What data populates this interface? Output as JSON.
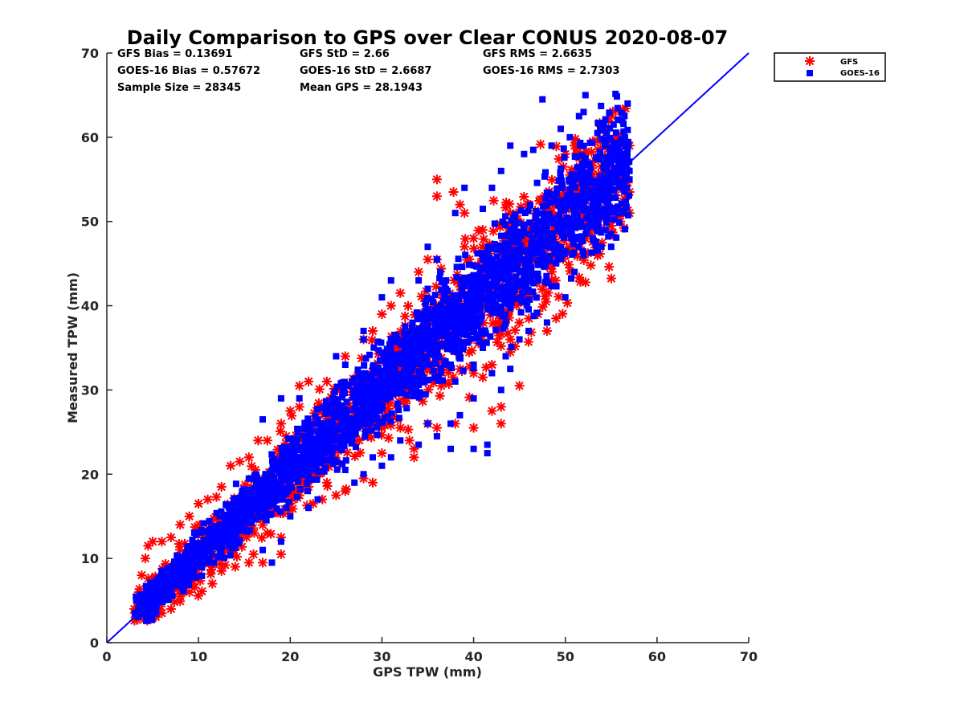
{
  "chart_data": {
    "type": "scatter",
    "title": "Daily Comparison to GPS over Clear CONUS 2020-08-07",
    "xlabel": "GPS TPW (mm)",
    "ylabel": "Measured TPW (mm)",
    "xlim": [
      0,
      70
    ],
    "ylim": [
      0,
      70
    ],
    "xticks": [
      "0",
      "10",
      "20",
      "30",
      "40",
      "50",
      "60",
      "70"
    ],
    "yticks": [
      "0",
      "10",
      "20",
      "30",
      "40",
      "50",
      "60",
      "70"
    ],
    "grid": false,
    "legend_position": "outside-top-right",
    "stats": [
      [
        "GFS Bias = 0.13691",
        "GFS StD = 2.66",
        "GFS RMS = 2.6635"
      ],
      [
        "GOES-16 Bias = 0.57672",
        "GOES-16 StD = 2.6687",
        "GOES-16 RMS = 2.7303"
      ],
      [
        "Sample Size = 28345",
        "Mean GPS = 28.1943",
        ""
      ]
    ],
    "series": [
      {
        "name": "GFS",
        "marker": "asterisk",
        "color": "#ff0000",
        "outliers": [
          [
            33.5,
            22
          ],
          [
            33.5,
            23
          ],
          [
            36,
            55
          ],
          [
            36,
            53
          ],
          [
            37.8,
            53.5
          ],
          [
            38.5,
            52
          ],
          [
            39,
            51
          ],
          [
            36,
            45.5
          ],
          [
            35,
            45.5
          ],
          [
            34,
            44
          ],
          [
            32,
            41.5
          ],
          [
            31,
            40
          ],
          [
            30,
            39
          ],
          [
            29,
            37
          ],
          [
            28,
            36
          ],
          [
            26,
            34
          ],
          [
            24,
            31
          ],
          [
            22,
            31
          ],
          [
            21,
            30.5
          ],
          [
            45,
            30.5
          ],
          [
            43,
            26
          ],
          [
            43,
            28
          ],
          [
            42,
            27.5
          ],
          [
            40,
            25.5
          ],
          [
            38,
            26
          ],
          [
            36,
            25.5
          ],
          [
            35,
            26
          ],
          [
            32,
            25.5
          ],
          [
            30,
            25.5
          ],
          [
            48,
            37
          ],
          [
            49,
            38.5
          ],
          [
            47,
            39
          ],
          [
            46,
            41
          ],
          [
            47.5,
            45
          ],
          [
            48,
            48
          ],
          [
            50,
            46
          ],
          [
            51,
            47
          ],
          [
            54,
            47.5
          ],
          [
            55,
            49.5
          ],
          [
            56,
            50
          ],
          [
            57,
            53.5
          ],
          [
            57,
            51
          ],
          [
            56,
            54
          ],
          [
            57,
            59
          ],
          [
            52,
            58
          ],
          [
            51,
            59
          ],
          [
            53,
            57
          ],
          [
            44,
            36
          ],
          [
            45,
            38
          ],
          [
            42,
            33
          ],
          [
            41,
            31.5
          ],
          [
            40,
            32
          ],
          [
            44,
            34.5
          ],
          [
            33,
            24
          ],
          [
            27,
            27
          ],
          [
            24,
            19
          ],
          [
            22,
            18.5
          ],
          [
            21,
            17.5
          ],
          [
            20,
            16.5
          ],
          [
            18.5,
            15.5
          ],
          [
            17.5,
            13
          ],
          [
            16,
            10.5
          ],
          [
            15.5,
            9.5
          ],
          [
            14,
            9
          ],
          [
            12.5,
            8.5
          ],
          [
            11.5,
            7
          ],
          [
            9,
            6
          ],
          [
            8,
            5.5
          ],
          [
            7,
            4
          ],
          [
            6,
            3.5
          ],
          [
            5,
            3
          ],
          [
            4,
            3
          ],
          [
            3.5,
            3.5
          ],
          [
            3,
            4
          ],
          [
            3.5,
            6
          ],
          [
            3.8,
            8
          ],
          [
            4.2,
            10
          ],
          [
            4.5,
            11.5
          ],
          [
            5,
            12
          ],
          [
            6,
            12
          ],
          [
            7,
            12.5
          ],
          [
            8,
            14
          ],
          [
            9,
            15
          ],
          [
            10,
            16.5
          ],
          [
            11,
            17
          ],
          [
            12.5,
            18.5
          ],
          [
            13.5,
            21
          ],
          [
            14.5,
            21.5
          ],
          [
            15.5,
            22
          ],
          [
            16.5,
            24
          ],
          [
            17.5,
            24
          ],
          [
            19,
            26
          ],
          [
            20,
            27.5
          ],
          [
            21,
            28
          ],
          [
            30,
            22.5
          ],
          [
            29,
            19
          ],
          [
            28,
            19.5
          ],
          [
            26,
            18
          ],
          [
            25,
            17.5
          ],
          [
            23.5,
            17
          ],
          [
            22.5,
            16.5
          ],
          [
            19,
            12.5
          ],
          [
            17,
            9.5
          ],
          [
            19,
            10.5
          ],
          [
            25,
            23
          ],
          [
            28,
            26.5
          ],
          [
            26,
            25
          ],
          [
            39,
            47
          ],
          [
            40,
            48
          ],
          [
            41,
            49
          ],
          [
            44,
            51
          ],
          [
            46,
            52
          ],
          [
            50,
            58
          ],
          [
            53,
            53
          ],
          [
            55,
            56
          ]
        ]
      },
      {
        "name": "GOES-16",
        "marker": "square",
        "color": "#0000ff",
        "outliers": [
          [
            47.5,
            64.5
          ],
          [
            52.2,
            65
          ],
          [
            56.8,
            64
          ],
          [
            49.5,
            61
          ],
          [
            50.5,
            60
          ],
          [
            51.5,
            62.5
          ],
          [
            52,
            63
          ],
          [
            53.5,
            60.5
          ],
          [
            54.5,
            60.5
          ],
          [
            56.5,
            60
          ],
          [
            48.5,
            59
          ],
          [
            46.5,
            58.5
          ],
          [
            44,
            59
          ],
          [
            45.5,
            58
          ],
          [
            43,
            56
          ],
          [
            42,
            54
          ],
          [
            39,
            54
          ],
          [
            38,
            51
          ],
          [
            41,
            51.5
          ],
          [
            35,
            47
          ],
          [
            36,
            45.5
          ],
          [
            37,
            43
          ],
          [
            35,
            42
          ],
          [
            34,
            43
          ],
          [
            31,
            43
          ],
          [
            30,
            41
          ],
          [
            28,
            37
          ],
          [
            28,
            36
          ],
          [
            26,
            33
          ],
          [
            25,
            34
          ],
          [
            21,
            29
          ],
          [
            19,
            29
          ],
          [
            17,
            26.5
          ],
          [
            37.5,
            23
          ],
          [
            40,
            23
          ],
          [
            41.5,
            22.5
          ],
          [
            41.5,
            23.5
          ],
          [
            37.5,
            26
          ],
          [
            38.5,
            27
          ],
          [
            36,
            24.5
          ],
          [
            34,
            23.5
          ],
          [
            31,
            22
          ],
          [
            29,
            22
          ],
          [
            26,
            20.5
          ],
          [
            44,
            32.5
          ],
          [
            43.5,
            34
          ],
          [
            41,
            35
          ],
          [
            40,
            33
          ],
          [
            45,
            36
          ],
          [
            46,
            37
          ],
          [
            48,
            38
          ],
          [
            50,
            41
          ],
          [
            51,
            44
          ],
          [
            52,
            46
          ],
          [
            55,
            47
          ],
          [
            53,
            48
          ],
          [
            56,
            51
          ],
          [
            57,
            55
          ],
          [
            57,
            56
          ],
          [
            55,
            57
          ],
          [
            50,
            51.5
          ],
          [
            46,
            45
          ],
          [
            47,
            43
          ],
          [
            19,
            12
          ],
          [
            17,
            11
          ],
          [
            18,
            9.5
          ],
          [
            20,
            15
          ],
          [
            22,
            16
          ],
          [
            23,
            17
          ],
          [
            27,
            19
          ],
          [
            28,
            20
          ],
          [
            30,
            21
          ],
          [
            32,
            24
          ],
          [
            35,
            26
          ],
          [
            38,
            31
          ],
          [
            40,
            29
          ],
          [
            42,
            32
          ],
          [
            43,
            30
          ]
        ]
      }
    ],
    "reference_line": {
      "name": "1:1 line",
      "color": "#0000ff",
      "from": [
        0,
        0
      ],
      "to": [
        70,
        70
      ]
    }
  }
}
